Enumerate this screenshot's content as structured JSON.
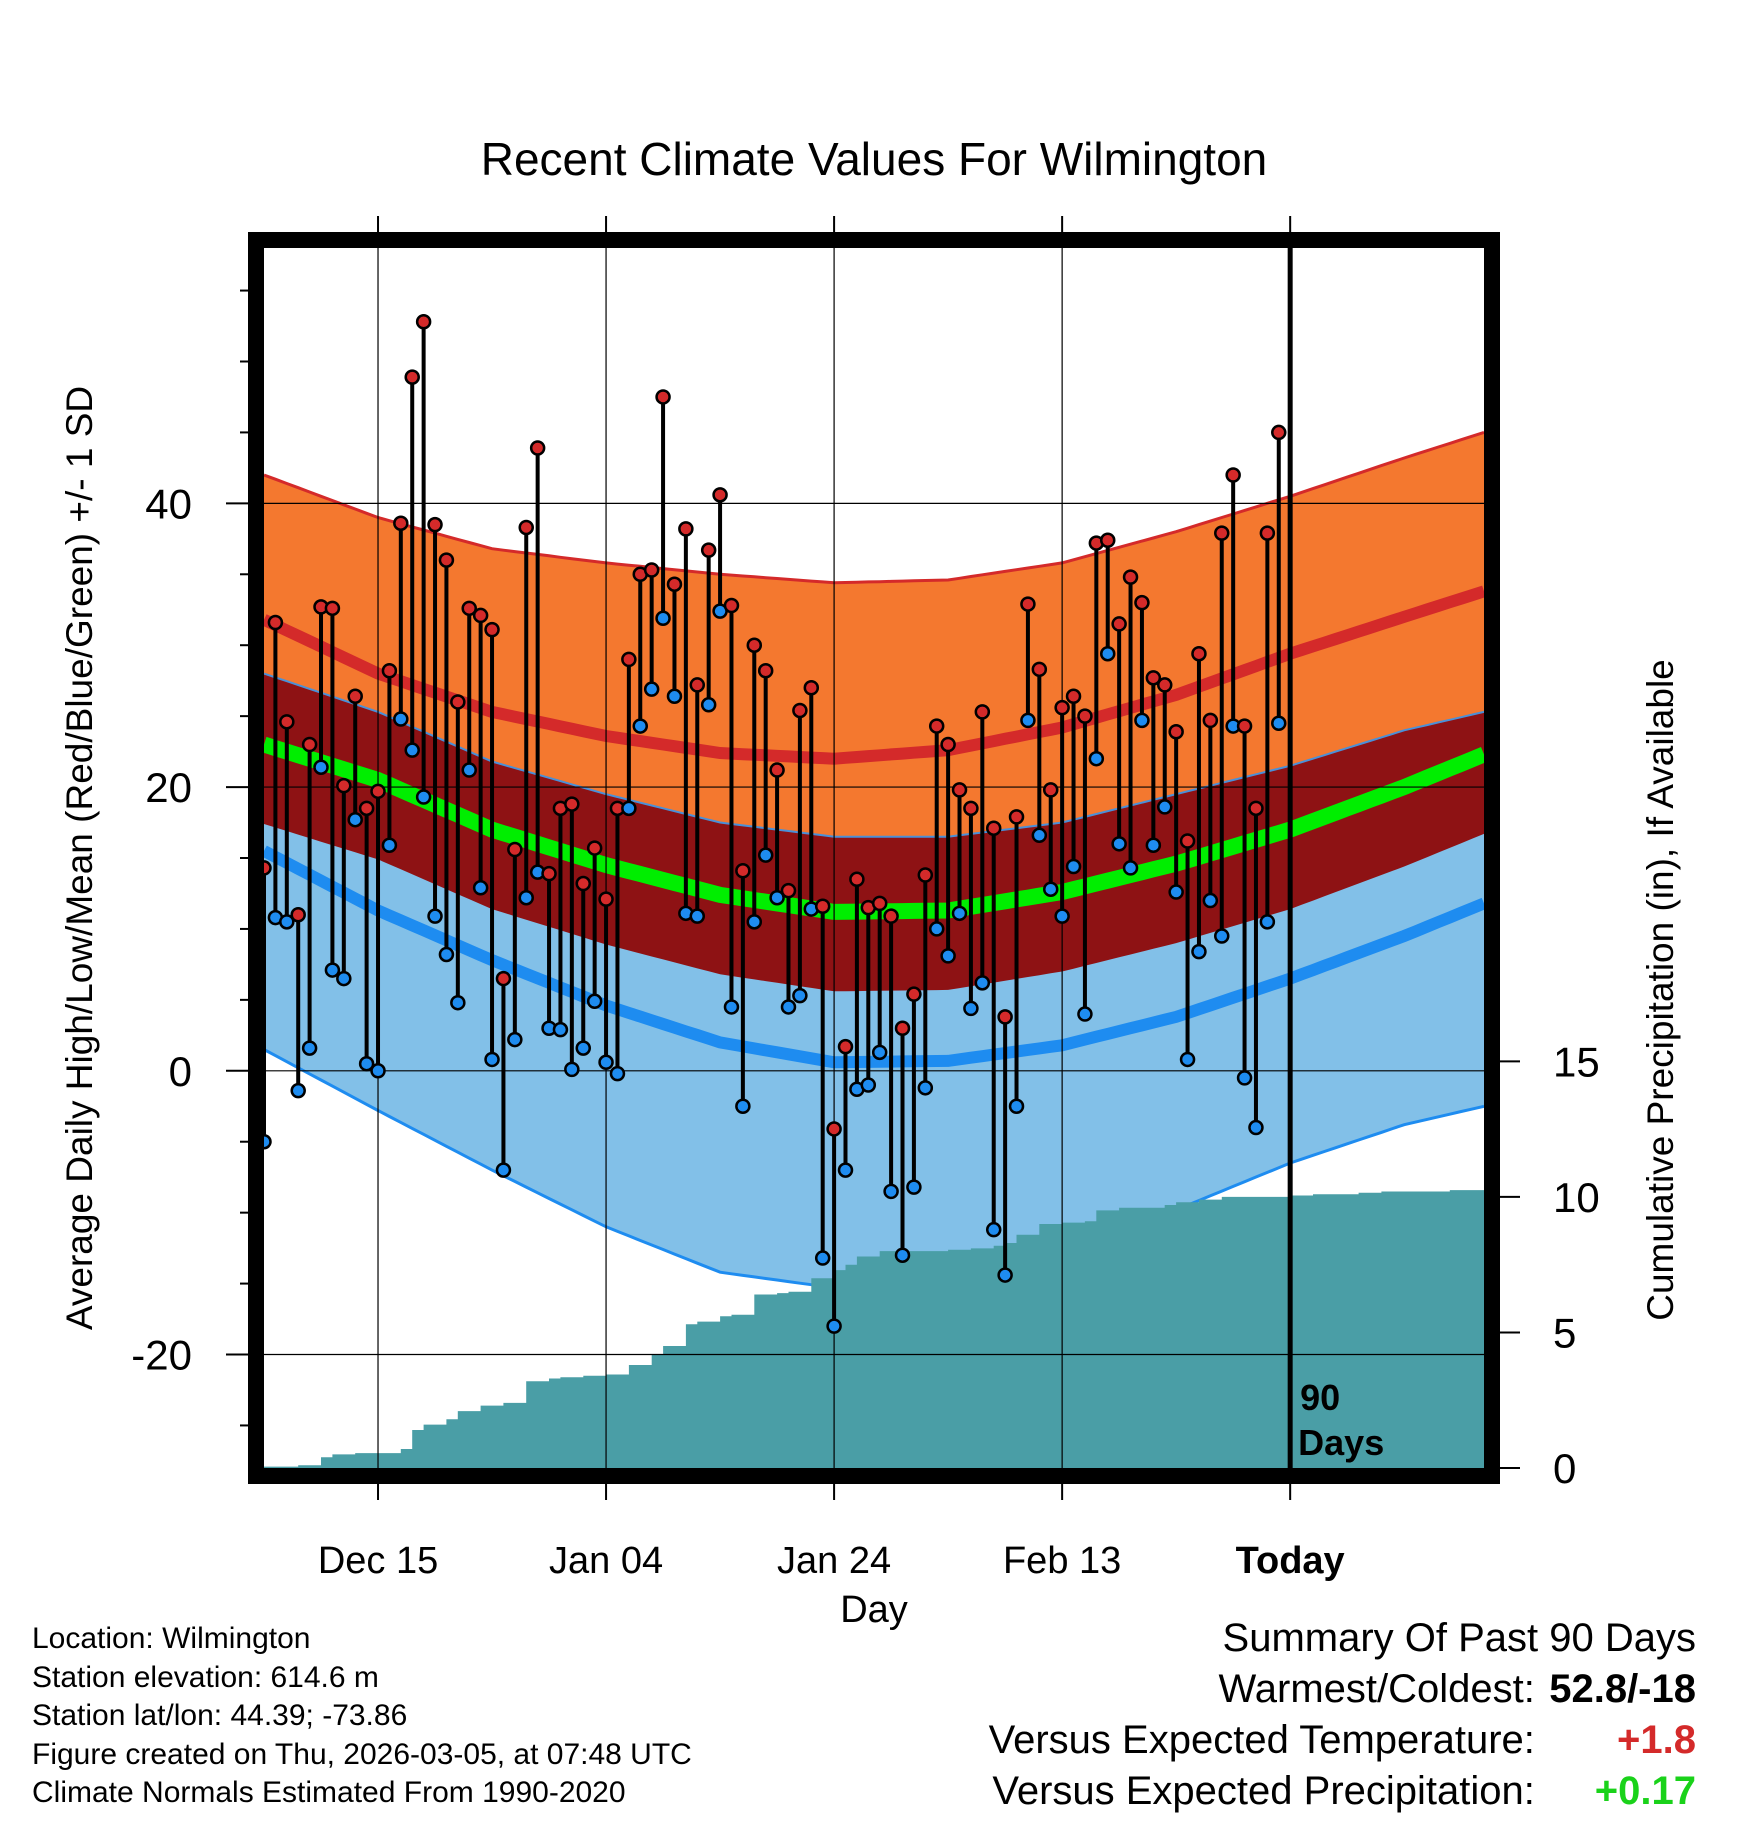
{
  "chart_data": {
    "type": "line",
    "title": "Recent Climate Values For Wilmington",
    "xlabel": "Day",
    "ylabel": "Average Daily High/Low/Mean (Red/Blue/Green) +/- 1 SD",
    "y2label": "Cumulative Precipitation (in), If Available",
    "ylim": [
      -28,
      58
    ],
    "y2lim": [
      0,
      45
    ],
    "x_days_range": [
      -110,
      -3
    ],
    "yticks": [
      -20,
      0,
      20,
      40
    ],
    "y2ticks": [
      0,
      5,
      10,
      15
    ],
    "xticks": [
      {
        "day": -100,
        "label": "Dec 15"
      },
      {
        "day": -80,
        "label": "Jan 04"
      },
      {
        "day": -60,
        "label": "Jan 24"
      },
      {
        "day": -40,
        "label": "Feb 13"
      },
      {
        "day": -20,
        "label": "Today"
      }
    ],
    "today_marker": {
      "day": -20,
      "label_line1": "90",
      "label_line2": "Days"
    },
    "normals": {
      "days": [
        -110,
        -100,
        -90,
        -80,
        -70,
        -60,
        -50,
        -40,
        -30,
        -20,
        -10,
        -3
      ],
      "high_mean": [
        31.8,
        28.0,
        25.3,
        23.6,
        22.4,
        22.0,
        22.6,
        24.2,
        26.5,
        29.4,
        32.0,
        33.8
      ],
      "high_plus_sd": [
        42.0,
        39.0,
        36.8,
        35.8,
        35.0,
        34.4,
        34.6,
        35.8,
        38.0,
        40.5,
        43.2,
        45.0
      ],
      "high_minus_sd": [
        28.0,
        25.3,
        21.8,
        19.5,
        17.5,
        16.5,
        16.5,
        17.5,
        19.5,
        21.5,
        24.0,
        25.3
      ],
      "mean_mean": [
        23.0,
        20.5,
        17.0,
        14.5,
        12.4,
        11.2,
        11.3,
        12.6,
        14.6,
        17.0,
        20.0,
        22.3
      ],
      "low_mean": [
        15.5,
        11.3,
        7.8,
        4.6,
        2.0,
        0.6,
        0.7,
        1.8,
        3.8,
        6.5,
        9.5,
        11.8
      ],
      "low_plus_sd": [
        28.0,
        25.3,
        21.8,
        19.5,
        17.5,
        16.5,
        16.5,
        17.5,
        19.5,
        21.5,
        24.0,
        25.3
      ],
      "low_minus_sd": [
        1.5,
        -2.8,
        -7.0,
        -11.0,
        -14.2,
        -15.3,
        -14.5,
        -12.5,
        -9.8,
        -6.5,
        -3.8,
        -2.5
      ],
      "colors": {
        "high_band": "#f4782f",
        "high_line": "#d42a2a",
        "mid_band": "#8e1214",
        "mean_line": "#00ee00",
        "low_band": "#82c0e8",
        "low_line": "#1e8cf0",
        "precip": "#4a9ea6"
      }
    },
    "daily": {
      "day_start": -110,
      "highs": [
        14.3,
        31.6,
        24.6,
        11.0,
        23.0,
        32.7,
        32.6,
        20.1,
        26.4,
        18.5,
        19.7,
        28.2,
        38.6,
        48.9,
        52.8,
        38.5,
        36.0,
        26.0,
        32.6,
        32.1,
        31.1,
        6.5,
        15.6,
        38.3,
        43.9,
        13.9,
        18.5,
        18.8,
        13.2,
        15.7,
        12.1,
        18.5,
        29.0,
        35.0,
        35.3,
        47.5,
        34.3,
        38.2,
        27.2,
        36.7,
        40.6,
        32.8,
        14.1,
        30.0,
        28.2,
        21.2,
        12.7,
        25.4,
        27.0,
        11.6,
        -4.1,
        1.7,
        13.5,
        11.5,
        11.8,
        10.9,
        3.0,
        5.4,
        13.8,
        24.3,
        23.0,
        19.8,
        18.5,
        25.3,
        17.1,
        3.8,
        17.9,
        32.9,
        28.3,
        19.8,
        25.6,
        26.4,
        25.0,
        37.2,
        37.4,
        31.5,
        34.8,
        33.0,
        27.7,
        27.2,
        23.9,
        16.2,
        29.4,
        24.7,
        37.9,
        42.0,
        24.3,
        18.5,
        37.9,
        45.0
      ],
      "lows": [
        -5.0,
        10.8,
        10.5,
        -1.4,
        1.6,
        21.4,
        7.1,
        6.5,
        17.7,
        0.5,
        0.0,
        15.9,
        24.8,
        22.6,
        19.3,
        10.9,
        8.2,
        4.8,
        21.2,
        12.9,
        0.8,
        -7.0,
        2.2,
        12.2,
        14.0,
        3.0,
        2.9,
        0.1,
        1.6,
        4.9,
        0.6,
        -0.2,
        18.5,
        24.3,
        26.9,
        31.9,
        26.4,
        11.1,
        10.9,
        25.8,
        32.4,
        4.5,
        -2.5,
        10.5,
        15.2,
        12.2,
        4.5,
        5.3,
        11.4,
        -13.2,
        -18.0,
        -7.0,
        -1.3,
        -1.0,
        1.3,
        -8.5,
        -13.0,
        -8.2,
        -1.2,
        10.0,
        8.1,
        11.1,
        4.4,
        6.2,
        -11.2,
        -14.4,
        -2.5,
        24.7,
        16.6,
        12.8,
        10.9,
        14.4,
        4.0,
        22.0,
        29.4,
        16.0,
        14.3,
        24.7,
        15.9,
        18.6,
        12.6,
        0.8,
        8.4,
        12.0,
        9.5,
        24.3,
        -0.5,
        -4.0,
        10.5,
        24.5
      ]
    },
    "precip_cumulative": {
      "days": [
        -110,
        -107,
        -105,
        -104,
        -102,
        -100,
        -98,
        -97,
        -96,
        -94,
        -93,
        -91,
        -89,
        -87,
        -85,
        -84,
        -82,
        -80,
        -78,
        -76,
        -75,
        -73,
        -72,
        -70,
        -69,
        -67,
        -65,
        -64,
        -62,
        -60,
        -59,
        -58,
        -56,
        -54,
        -52,
        -50,
        -48,
        -47,
        -46,
        -45,
        -44,
        -42,
        -40,
        -38,
        -37,
        -35,
        -33,
        -31,
        -30,
        -28,
        -26,
        -24,
        -22,
        -20,
        -18,
        -16,
        -14,
        -12,
        -10,
        -8,
        -6,
        -4,
        -3
      ],
      "values": [
        0.05,
        0.1,
        0.4,
        0.5,
        0.55,
        0.55,
        0.7,
        1.4,
        1.6,
        1.8,
        2.1,
        2.3,
        2.4,
        3.2,
        3.3,
        3.35,
        3.4,
        3.45,
        3.8,
        4.2,
        4.5,
        5.3,
        5.4,
        5.6,
        5.65,
        6.4,
        6.45,
        6.5,
        7.0,
        7.3,
        7.5,
        7.8,
        8.0,
        8.0,
        8.0,
        8.05,
        8.1,
        8.1,
        8.2,
        8.3,
        8.6,
        9.0,
        9.05,
        9.1,
        9.5,
        9.6,
        9.6,
        9.7,
        9.8,
        9.9,
        10.0,
        10.0,
        10.0,
        10.05,
        10.1,
        10.1,
        10.15,
        10.2,
        10.2,
        10.2,
        10.25,
        10.25,
        10.25
      ]
    }
  },
  "info": {
    "location": "Location: Wilmington",
    "elevation": "Station elevation: 614.6 m",
    "latlon": "Station lat/lon: 44.39; -73.86",
    "created": "Figure created on Thu, 2026-03-05, at 07:48 UTC",
    "normals_period": "Climate Normals Estimated From 1990-2020"
  },
  "summary": {
    "title": "Summary Of Past 90 Days",
    "warm_cold_label": "Warmest/Coldest:",
    "warm_cold_value": "52.8/-18",
    "temp_label": "Versus Expected Temperature:",
    "temp_value": "+1.8",
    "precip_label": "Versus Expected Precipitation:",
    "precip_value": "+0.17"
  }
}
